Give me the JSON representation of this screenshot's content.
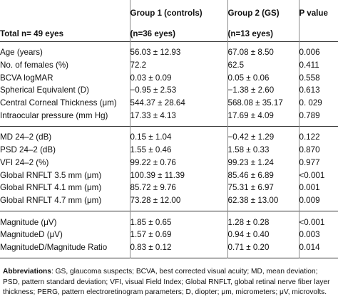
{
  "header": {
    "group1": "Group 1 (controls)",
    "group2": "Group 2 (GS)",
    "pvalue": "P value",
    "total": "Total n= 49 eyes",
    "group1_n": "(n=36 eyes)",
    "group2_n": "(n=13 eyes)"
  },
  "sections": [
    {
      "rows": [
        {
          "label": "Age (years)",
          "g1": "56.03 ± 12.93",
          "g2": "67.08 ± 8.50",
          "p": "0.006"
        },
        {
          "label": "No. of females (%)",
          "g1": "72.2",
          "g2": "62.5",
          "p": "0.411"
        },
        {
          "label": "BCVA logMAR",
          "g1": "0.03 ± 0.09",
          "g2": "0.05 ± 0.06",
          "p": "0.558"
        },
        {
          "label": "Spherical Equivalent (D)",
          "g1": "−0.95 ± 2.53",
          "g2": "−1.38 ± 2.60",
          "p": "0.613"
        },
        {
          "label": "Central Corneal Thickness (μm)",
          "g1": "544.37 ± 28.64",
          "g2": "568.08 ± 35.17",
          "p": "0. 029"
        },
        {
          "label": "Intraocular pressure (mm Hg)",
          "g1": "17.33 ± 4.13",
          "g2": "17.69 ± 4.09",
          "p": "0.789"
        }
      ]
    },
    {
      "rows": [
        {
          "label": "MD 24–2 (dB)",
          "g1": "0.15 ± 1.04",
          "g2": "−0.42 ± 1.29",
          "p": "0.122"
        },
        {
          "label": "PSD 24–2 (dB)",
          "g1": "1.55 ± 0.46",
          "g2": "1.58 ± 0.33",
          "p": "0.870"
        },
        {
          "label": "VFI 24–2 (%)",
          "g1": "99.22 ± 0.76",
          "g2": "99.23 ± 1.24",
          "p": "0.977"
        },
        {
          "label": "Global RNFLT 3.5 mm (μm)",
          "g1": "100.39 ± 11.39",
          "g2": "85.46 ± 6.89",
          "p": "<0.001"
        },
        {
          "label": "Global RNFLT 4.1 mm (μm)",
          "g1": "85.72 ± 9.76",
          "g2": "75.31 ± 6.97",
          "p": "0.001"
        },
        {
          "label": "Global RNFLT 4.7 mm (μm)",
          "g1": "73.28 ± 12.00",
          "g2": "62.38 ± 13.00",
          "p": "0.009"
        }
      ]
    },
    {
      "rows": [
        {
          "label": "Magnitude (μV)",
          "g1": "1.85 ± 0.65",
          "g2": "1.28 ± 0.28",
          "p": "<0.001"
        },
        {
          "label": "MagnitudeD (μV)",
          "g1": "1.57 ± 0.69",
          "g2": "0.94 ± 0.40",
          "p": "0.003"
        },
        {
          "label": "MagnitudeD/Magnitude Ratio",
          "g1": "0.83 ± 0.12",
          "g2": "0.71 ± 0.20",
          "p": "0.014"
        }
      ]
    }
  ],
  "footnote": {
    "title": "Abbreviations",
    "text": ": GS, glaucoma suspects; BCVA, best corrected visual acuity; MD, mean deviation; PSD, pattern standard deviation; VFI, visual Field Index; Global RNFLT, global retinal nerve fiber layer thickness; PERG, pattern electroretinogram parameters; D, diopter; μm, micrometers; μV, microvolts."
  }
}
